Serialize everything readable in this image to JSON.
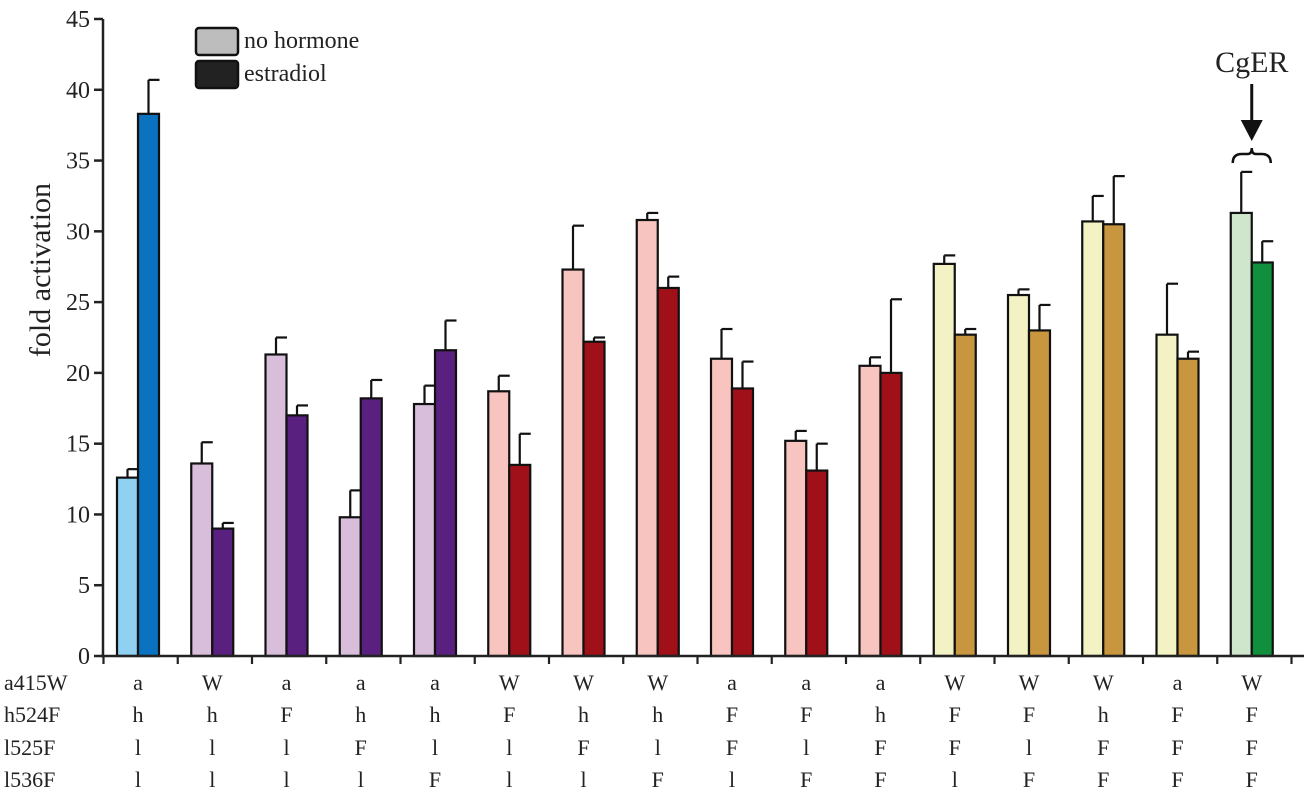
{
  "chart_data": {
    "type": "bar",
    "ylabel": "fold activation",
    "ylim": [
      0,
      45
    ],
    "yticks": [
      0,
      5,
      10,
      15,
      20,
      25,
      30,
      35,
      40,
      45
    ],
    "grid": false,
    "legend_position": "top-left",
    "legend": [
      {
        "label": "no hormone",
        "color": "#bdbdbd"
      },
      {
        "label": "estradiol",
        "color": "#222222"
      }
    ],
    "series": [
      {
        "name": "no hormone",
        "values": [
          12.6,
          13.6,
          21.3,
          9.8,
          17.8,
          18.7,
          27.3,
          30.8,
          21.0,
          15.2,
          20.5,
          27.7,
          25.5,
          30.7,
          22.7,
          31.3
        ],
        "errors": [
          0.6,
          1.5,
          1.2,
          1.9,
          1.3,
          1.1,
          3.1,
          0.5,
          2.1,
          0.7,
          0.6,
          0.6,
          0.4,
          1.8,
          3.6,
          2.9
        ]
      },
      {
        "name": "estradiol",
        "values": [
          38.3,
          9.0,
          17.0,
          18.2,
          21.6,
          13.5,
          22.2,
          26.0,
          18.9,
          13.1,
          20.0,
          22.7,
          23.0,
          30.5,
          21.0,
          27.8
        ],
        "errors": [
          2.4,
          0.4,
          0.7,
          1.3,
          2.1,
          2.2,
          0.3,
          0.8,
          1.9,
          1.9,
          5.2,
          0.4,
          1.8,
          3.4,
          0.5,
          1.5
        ]
      }
    ],
    "colors": [
      {
        "light": "#90d0f0",
        "dark": "#0a72bf"
      },
      {
        "light": "#d8bedb",
        "dark": "#5a2080"
      },
      {
        "light": "#d8bedb",
        "dark": "#5a2080"
      },
      {
        "light": "#d8bedb",
        "dark": "#5a2080"
      },
      {
        "light": "#d8bedb",
        "dark": "#5a2080"
      },
      {
        "light": "#f8c4c0",
        "dark": "#a01018"
      },
      {
        "light": "#f8c4c0",
        "dark": "#a01018"
      },
      {
        "light": "#f8c4c0",
        "dark": "#a01018"
      },
      {
        "light": "#f8c4c0",
        "dark": "#a01018"
      },
      {
        "light": "#f8c4c0",
        "dark": "#a01018"
      },
      {
        "light": "#f8c4c0",
        "dark": "#a01018"
      },
      {
        "light": "#f2f2c4",
        "dark": "#c8963e"
      },
      {
        "light": "#f2f2c4",
        "dark": "#c8963e"
      },
      {
        "light": "#f2f2c4",
        "dark": "#c8963e"
      },
      {
        "light": "#f2f2c4",
        "dark": "#c8963e"
      },
      {
        "light": "#cfe6cc",
        "dark": "#10903c"
      }
    ],
    "mutation_rows": [
      {
        "label": "a415W",
        "values": [
          "a",
          "W",
          "a",
          "a",
          "a",
          "W",
          "W",
          "W",
          "a",
          "a",
          "a",
          "W",
          "W",
          "W",
          "a",
          "W"
        ]
      },
      {
        "label": "h524F",
        "values": [
          "h",
          "h",
          "F",
          "h",
          "h",
          "F",
          "h",
          "h",
          "F",
          "F",
          "h",
          "F",
          "F",
          "h",
          "F",
          "F"
        ]
      },
      {
        "label": "l525F",
        "values": [
          "l",
          "l",
          "l",
          "F",
          "l",
          "l",
          "F",
          "l",
          "F",
          "l",
          "F",
          "F",
          "l",
          "F",
          "F",
          "F"
        ]
      },
      {
        "label": "l536F",
        "values": [
          "l",
          "l",
          "l",
          "l",
          "F",
          "l",
          "l",
          "F",
          "l",
          "F",
          "F",
          "l",
          "F",
          "F",
          "F",
          "F"
        ]
      }
    ],
    "annotation": {
      "text": "CgER",
      "group_index": 15
    }
  }
}
